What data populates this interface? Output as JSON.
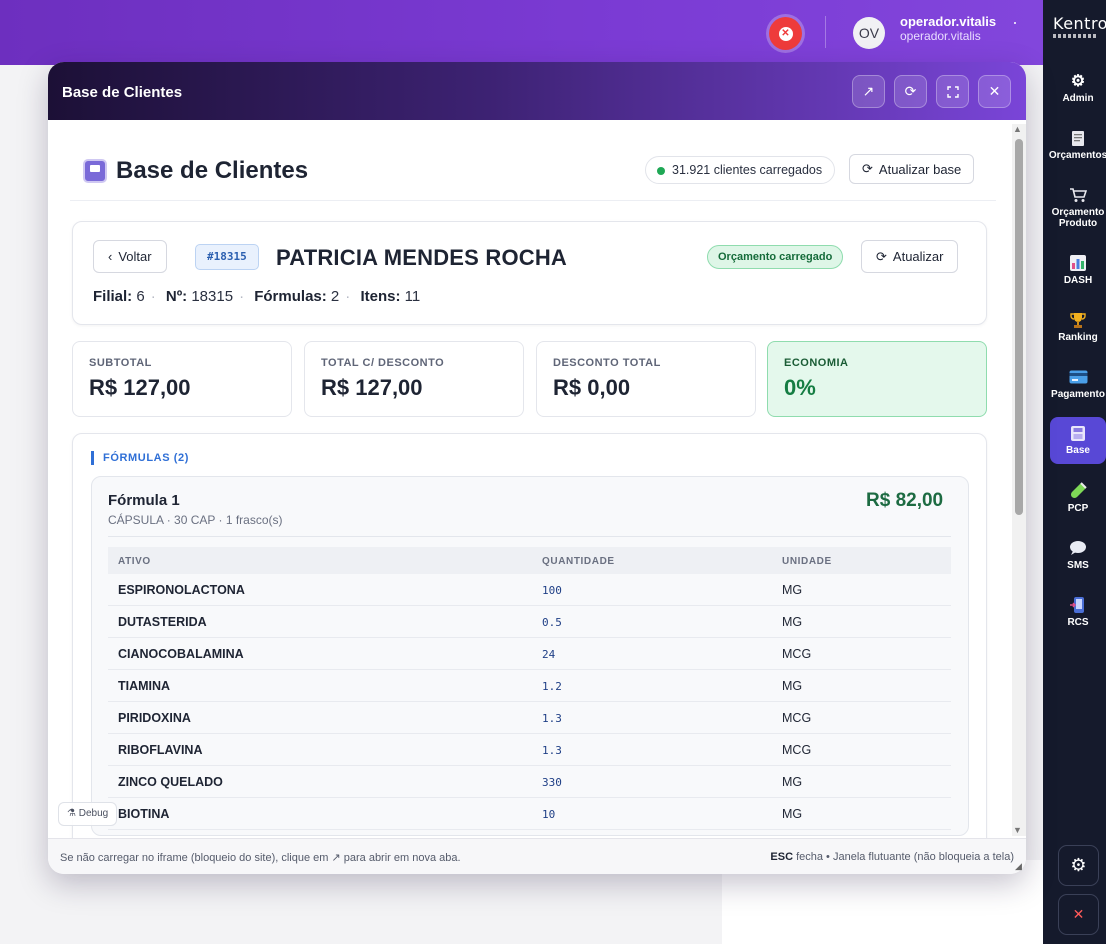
{
  "topbar": {
    "user_initials": "OV",
    "user_name": "operador.vitalis",
    "user_sub": "operador.vitalis"
  },
  "sidebar": {
    "logo": "Kentro",
    "items": [
      {
        "label": "Admin",
        "icon": "gear-icon"
      },
      {
        "label": "Orçamentos",
        "icon": "receipt-icon"
      },
      {
        "label": "Orçamento Produto",
        "icon": "cart-icon"
      },
      {
        "label": "DASH",
        "icon": "chart-icon"
      },
      {
        "label": "Ranking",
        "icon": "trophy-icon"
      },
      {
        "label": "Pagamento",
        "icon": "card-icon"
      },
      {
        "label": "Base",
        "icon": "database-icon"
      },
      {
        "label": "PCP",
        "icon": "flask-icon"
      },
      {
        "label": "SMS",
        "icon": "chat-icon"
      },
      {
        "label": "RCS",
        "icon": "phone-icon"
      }
    ],
    "active": "Base"
  },
  "window": {
    "title": "Base de Clientes",
    "footer_left": "Se não carregar no iframe (bloqueio do site), clique em ↗ para abrir em nova aba.",
    "footer_esc": "ESC",
    "footer_right": "fecha • Janela flutuante (não bloqueia a tela)"
  },
  "page": {
    "title": "Base de Clientes",
    "loaded_count": "31.921 clientes carregados",
    "refresh_base_label": "Atualizar base"
  },
  "client": {
    "back_label": "Voltar",
    "id": "#18315",
    "name": "PATRICIA MENDES ROCHA",
    "status": "Orçamento carregado",
    "refresh_label": "Atualizar",
    "meta": {
      "filial_label": "Filial:",
      "filial": "6",
      "numero_label": "Nº:",
      "numero": "18315",
      "formulas_label": "Fórmulas:",
      "formulas": "2",
      "itens_label": "Itens:",
      "itens": "11"
    }
  },
  "stats": [
    {
      "label": "SUBTOTAL",
      "value": "R$ 127,00"
    },
    {
      "label": "TOTAL C/ DESCONTO",
      "value": "R$ 127,00"
    },
    {
      "label": "DESCONTO TOTAL",
      "value": "R$ 0,00"
    },
    {
      "label": "ECONOMIA",
      "value": "0%"
    }
  ],
  "formulas": {
    "section_label": "FÓRMULAS (2)",
    "items": [
      {
        "title": "Fórmula 1",
        "subtitle": "CÁPSULA · 30 CAP · 1 frasco(s)",
        "price": "R$ 82,00",
        "columns": [
          "ATIVO",
          "QUANTIDADE",
          "UNIDADE"
        ],
        "rows": [
          [
            "ESPIRONOLACTONA",
            "100",
            "MG"
          ],
          [
            "DUTASTERIDA",
            "0.5",
            "MG"
          ],
          [
            "CIANOCOBALAMINA",
            "24",
            "MCG"
          ],
          [
            "TIAMINA",
            "1.2",
            "MG"
          ],
          [
            "PIRIDOXINA",
            "1.3",
            "MCG"
          ],
          [
            "RIBOFLAVINA",
            "1.3",
            "MCG"
          ],
          [
            "ZINCO QUELADO",
            "330",
            "MG"
          ],
          [
            "BIOTINA",
            "10",
            "MG"
          ]
        ]
      }
    ]
  },
  "debug_label": "Debug",
  "colors": {
    "accent": "#7b3bd4",
    "sidebar": "#151a2c",
    "success": "#157d43",
    "link": "#2f6fd6"
  }
}
